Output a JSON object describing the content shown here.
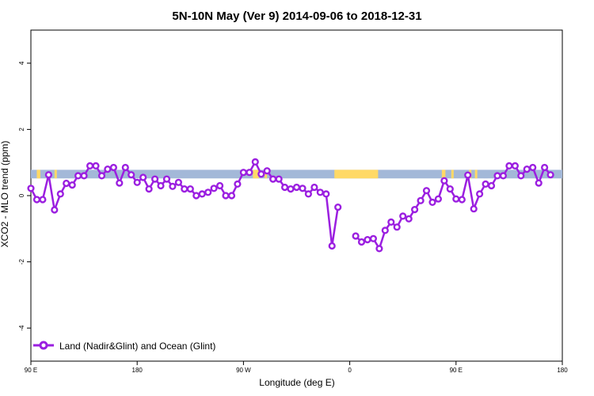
{
  "chart_data": {
    "type": "line",
    "title": "5N-10N May (Ver 9)   2014-09-06 to 2018-12-31",
    "xlabel": "Longitude (deg E)",
    "ylabel": "XCO2 - MLO trend (ppm)",
    "xlim": [
      90,
      450
    ],
    "ylim": [
      -5,
      5
    ],
    "x_ticks": [
      {
        "value": 90,
        "label": "90 E"
      },
      {
        "value": 180,
        "label": "180"
      },
      {
        "value": 270,
        "label": "90 W"
      },
      {
        "value": 360,
        "label": "0"
      },
      {
        "value": 450,
        "label": "90 E"
      },
      {
        "value": 540,
        "label": "180"
      }
    ],
    "y_ticks": [
      {
        "value": -4,
        "label": "-4"
      },
      {
        "value": -2,
        "label": "-2"
      },
      {
        "value": 0,
        "label": "0"
      },
      {
        "value": 2,
        "label": "2"
      },
      {
        "value": 4,
        "label": "4"
      }
    ],
    "x_axis_extent": [
      90,
      540
    ],
    "colors": {
      "line": "#9b1fe0",
      "ocean_band": "#a3b8d8",
      "land_band": "#ffd966"
    },
    "legend": {
      "position": "bottom-left"
    },
    "series": [
      {
        "name": "Land (Nadir&Glint) and Ocean (Glint)",
        "points": [
          [
            90,
            0.22
          ],
          [
            95,
            -0.12
          ],
          [
            100,
            -0.12
          ],
          [
            105,
            0.63
          ],
          [
            110,
            -0.43
          ],
          [
            115,
            0.05
          ],
          [
            120,
            0.37
          ],
          [
            125,
            0.32
          ],
          [
            130,
            0.6
          ],
          [
            135,
            0.6
          ],
          [
            140,
            0.9
          ],
          [
            145,
            0.9
          ],
          [
            150,
            0.6
          ],
          [
            155,
            0.8
          ],
          [
            160,
            0.85
          ],
          [
            165,
            0.38
          ],
          [
            170,
            0.85
          ],
          [
            175,
            0.63
          ],
          [
            180,
            0.4
          ],
          [
            185,
            0.55
          ],
          [
            190,
            0.2
          ],
          [
            195,
            0.5
          ],
          [
            200,
            0.3
          ],
          [
            205,
            0.5
          ],
          [
            210,
            0.28
          ],
          [
            215,
            0.4
          ],
          [
            220,
            0.2
          ],
          [
            225,
            0.2
          ],
          [
            230,
            0.0
          ],
          [
            235,
            0.05
          ],
          [
            240,
            0.1
          ],
          [
            245,
            0.22
          ],
          [
            250,
            0.3
          ],
          [
            255,
            0.0
          ],
          [
            260,
            0.0
          ],
          [
            265,
            0.35
          ],
          [
            270,
            0.7
          ],
          [
            275,
            0.7
          ],
          [
            280,
            1.02
          ],
          [
            285,
            0.65
          ],
          [
            290,
            0.75
          ],
          [
            295,
            0.5
          ],
          [
            300,
            0.5
          ],
          [
            305,
            0.25
          ],
          [
            310,
            0.2
          ],
          [
            315,
            0.25
          ],
          [
            320,
            0.22
          ],
          [
            325,
            0.05
          ],
          [
            330,
            0.25
          ],
          [
            335,
            0.1
          ],
          [
            340,
            0.05
          ],
          [
            345,
            -1.52
          ],
          [
            350,
            -0.35
          ],
          null,
          [
            365,
            -1.22
          ],
          [
            370,
            -1.4
          ],
          [
            375,
            -1.33
          ],
          [
            380,
            -1.3
          ],
          [
            385,
            -1.6
          ],
          [
            390,
            -1.05
          ],
          [
            395,
            -0.8
          ],
          [
            400,
            -0.95
          ],
          [
            405,
            -0.62
          ],
          [
            410,
            -0.7
          ],
          [
            415,
            -0.42
          ],
          [
            420,
            -0.15
          ],
          [
            425,
            0.15
          ],
          [
            430,
            -0.2
          ],
          [
            435,
            -0.1
          ],
          [
            440,
            0.45
          ],
          [
            445,
            0.2
          ],
          [
            450,
            -0.1
          ],
          [
            455,
            -0.12
          ],
          [
            460,
            0.62
          ],
          [
            465,
            -0.4
          ],
          [
            470,
            0.05
          ],
          [
            475,
            0.35
          ],
          [
            480,
            0.3
          ],
          [
            485,
            0.6
          ],
          [
            490,
            0.6
          ],
          [
            495,
            0.9
          ],
          [
            500,
            0.9
          ],
          [
            505,
            0.6
          ],
          [
            510,
            0.8
          ],
          [
            515,
            0.85
          ],
          [
            520,
            0.38
          ],
          [
            525,
            0.85
          ],
          [
            530,
            0.63
          ]
        ]
      }
    ]
  }
}
